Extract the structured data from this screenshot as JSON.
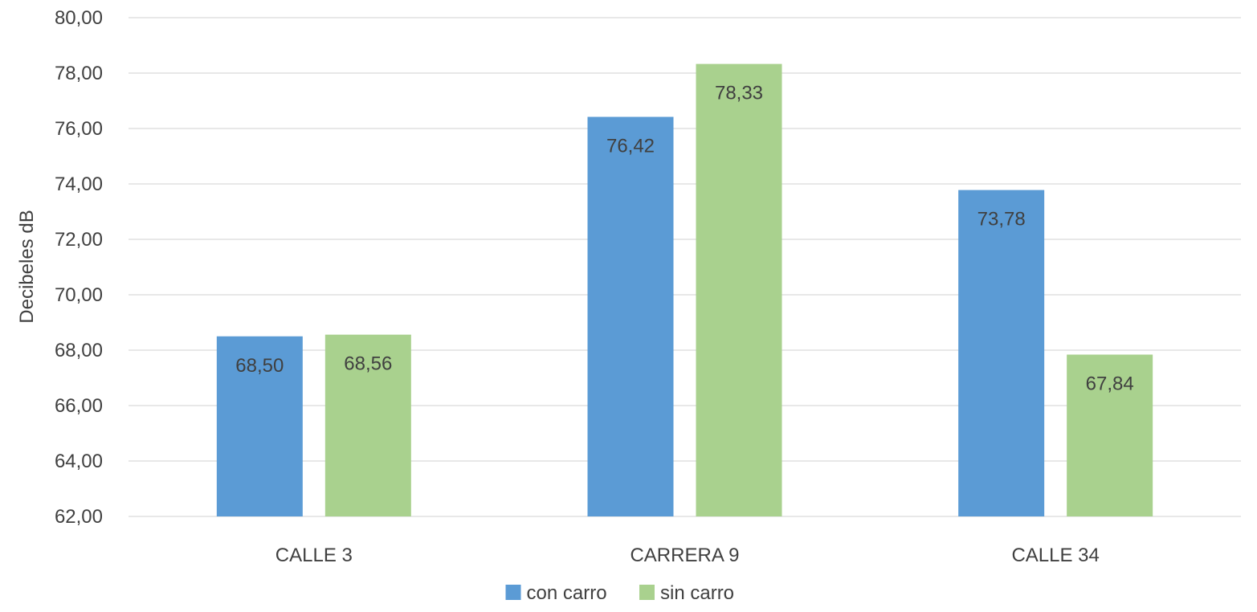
{
  "chart_data": {
    "type": "bar",
    "title": "",
    "xlabel": "",
    "ylabel": "Decibeles dB",
    "ylim": [
      62,
      80
    ],
    "ytick_step": 2,
    "ytick_labels": [
      "62,00",
      "64,00",
      "66,00",
      "68,00",
      "70,00",
      "72,00",
      "74,00",
      "76,00",
      "78,00",
      "80,00"
    ],
    "categories": [
      "CALLE 3",
      "CARRERA 9",
      "CALLE 34"
    ],
    "series": [
      {
        "name": "con carro",
        "color": "#5b9bd5",
        "values": [
          68.5,
          76.42,
          73.78
        ],
        "labels": [
          "68,50",
          "76,42",
          "73,78"
        ]
      },
      {
        "name": "sin carro",
        "color": "#a9d18e",
        "values": [
          68.56,
          78.33,
          67.84
        ],
        "labels": [
          "68,56",
          "78,33",
          "67,84"
        ]
      }
    ],
    "grid": true,
    "legend_position": "bottom"
  }
}
